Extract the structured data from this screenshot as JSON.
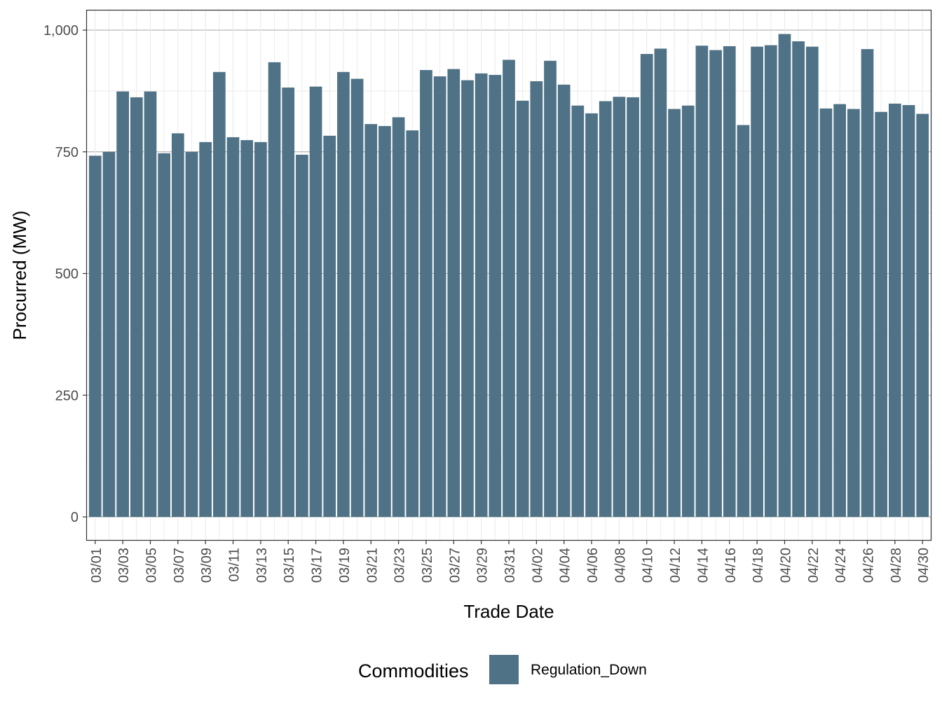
{
  "chart_data": {
    "type": "bar",
    "title": "",
    "xlabel": "Trade Date",
    "ylabel": "Procurred (MW)",
    "ylim": [
      -48,
      1040
    ],
    "yticks": [
      0,
      250,
      500,
      750,
      1000
    ],
    "ytick_labels": [
      "0",
      "250",
      "500",
      "750",
      "1,000"
    ],
    "categories": [
      "03/01",
      "03/02",
      "03/03",
      "03/04",
      "03/05",
      "03/06",
      "03/07",
      "03/08",
      "03/09",
      "03/10",
      "03/11",
      "03/12",
      "03/13",
      "03/14",
      "03/15",
      "03/16",
      "03/17",
      "03/18",
      "03/19",
      "03/20",
      "03/21",
      "03/22",
      "03/23",
      "03/24",
      "03/25",
      "03/26",
      "03/27",
      "03/28",
      "03/29",
      "03/30",
      "03/31",
      "04/01",
      "04/02",
      "04/03",
      "04/04",
      "04/05",
      "04/06",
      "04/07",
      "04/08",
      "04/09",
      "04/10",
      "04/11",
      "04/12",
      "04/13",
      "04/14",
      "04/15",
      "04/16",
      "04/17",
      "04/18",
      "04/19",
      "04/20",
      "04/21",
      "04/22",
      "04/23",
      "04/24",
      "04/25",
      "04/26",
      "04/27",
      "04/28",
      "04/29",
      "04/30"
    ],
    "tick_labels": [
      "03/01",
      "03/03",
      "03/05",
      "03/07",
      "03/09",
      "03/11",
      "03/13",
      "03/15",
      "03/17",
      "03/19",
      "03/21",
      "03/23",
      "03/25",
      "03/27",
      "03/29",
      "03/31",
      "04/02",
      "04/04",
      "04/06",
      "04/08",
      "04/10",
      "04/12",
      "04/14",
      "04/16",
      "04/18",
      "04/20",
      "04/22",
      "04/24",
      "04/26",
      "04/28",
      "04/30"
    ],
    "series": [
      {
        "name": "Regulation_Down",
        "color": "#4f7286",
        "values": [
          742,
          750,
          874,
          862,
          874,
          747,
          788,
          750,
          770,
          914,
          780,
          774,
          770,
          934,
          882,
          744,
          884,
          783,
          914,
          900,
          807,
          803,
          821,
          794,
          918,
          905,
          920,
          897,
          911,
          908,
          939,
          855,
          895,
          937,
          888,
          845,
          829,
          854,
          863,
          862,
          951,
          962,
          838,
          845,
          968,
          959,
          967,
          805,
          966,
          969,
          992,
          977,
          966,
          839,
          848,
          838,
          961,
          832,
          849,
          846,
          828
        ]
      }
    ],
    "legend": {
      "title": "Commodities",
      "position": "bottom",
      "entries": [
        "Regulation_Down"
      ]
    },
    "grid": true
  },
  "colors": {
    "bar": "#4f7286",
    "grid_major": "#a6a6a6",
    "grid_minor": "#ebebeb",
    "panel_border": "#333333"
  }
}
